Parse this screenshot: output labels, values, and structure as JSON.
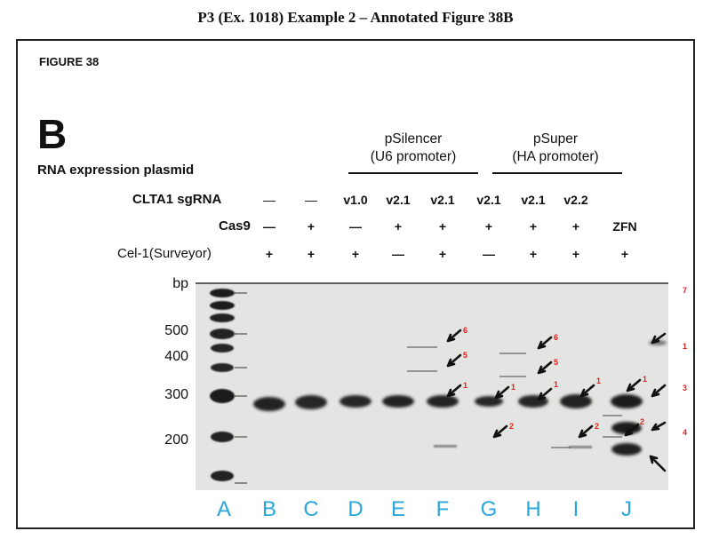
{
  "page_title": "P3 (Ex. 1018) Example 2 – Annotated Figure 38B",
  "figure_label": "FIGURE 38",
  "panel_letter": "B",
  "rows": {
    "rna_plasmid": "RNA expression plasmid",
    "sgrna": "CLTA1 sgRNA",
    "cas9": "Cas9",
    "cel1": "Cel-1(Surveyor)"
  },
  "groups": [
    {
      "line1": "pSilencer",
      "line2": "(U6 promoter)"
    },
    {
      "line1": "pSuper",
      "line2": "(HA promoter)"
    }
  ],
  "ladder": {
    "unit": "bp",
    "marks": [
      "500",
      "400",
      "300",
      "200"
    ]
  },
  "lanes": [
    {
      "letter": "A",
      "sgrna": "",
      "cas9": "",
      "cel1": ""
    },
    {
      "letter": "B",
      "sgrna": "—",
      "cas9": "—",
      "cel1": "+"
    },
    {
      "letter": "C",
      "sgrna": "—",
      "cas9": "+",
      "cel1": "+"
    },
    {
      "letter": "D",
      "sgrna": "v1.0",
      "cas9": "—",
      "cel1": "+"
    },
    {
      "letter": "E",
      "sgrna": "v2.1",
      "cas9": "+",
      "cel1": "—"
    },
    {
      "letter": "F",
      "sgrna": "v2.1",
      "cas9": "+",
      "cel1": "+"
    },
    {
      "letter": "G",
      "sgrna": "v2.1",
      "cas9": "+",
      "cel1": "—"
    },
    {
      "letter": "H",
      "sgrna": "v2.1",
      "cas9": "+",
      "cel1": "+"
    },
    {
      "letter": "I",
      "sgrna": "v2.2",
      "cas9": "+",
      "cel1": "+"
    },
    {
      "letter": "J",
      "sgrna": "",
      "cas9": "ZFN",
      "cel1": "+"
    }
  ],
  "annotations": {
    "E": [
      "6",
      "5",
      "1"
    ],
    "F": [
      "1",
      "2"
    ],
    "G": [
      "6",
      "5",
      "1"
    ],
    "H": [
      "1",
      "2"
    ],
    "I": [
      "1",
      "2"
    ],
    "J": [
      "7",
      "1",
      "3",
      "4"
    ]
  },
  "colors": {
    "annotation": "#e02020",
    "lane_letter": "#2aa6d8",
    "gel_bg": "#e4e4e2",
    "band": "#1c1c1c"
  }
}
